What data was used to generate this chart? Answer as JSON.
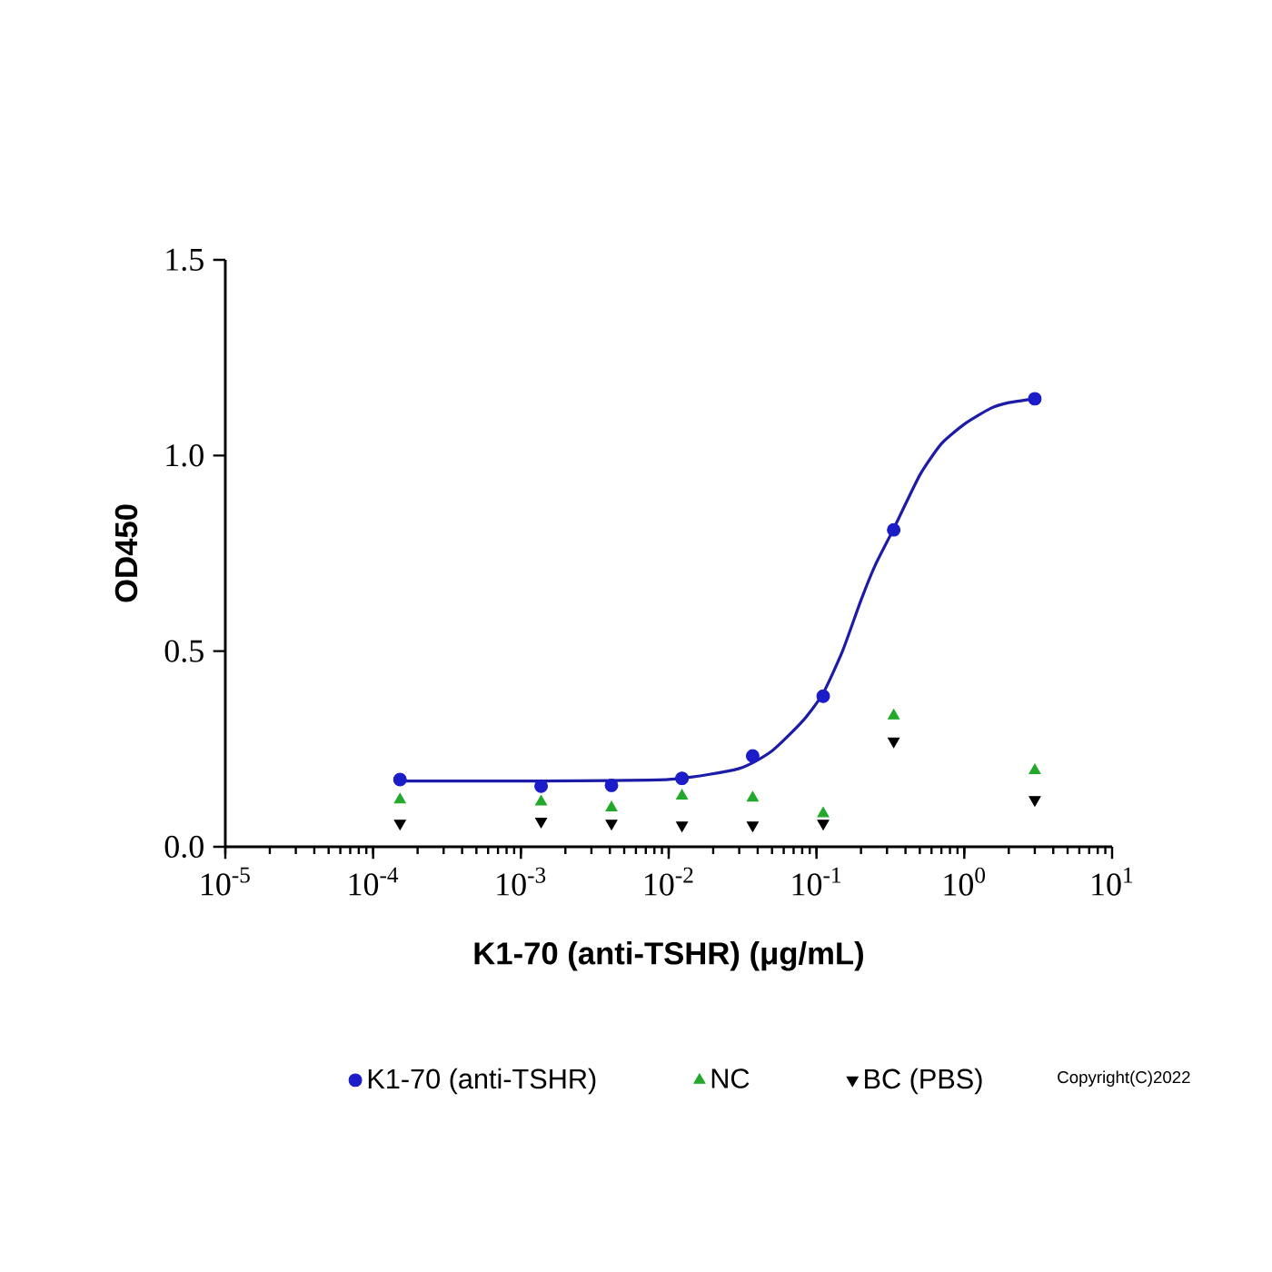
{
  "chart_data": {
    "type": "scatter",
    "xlabel": "K1-70 (anti-TSHR) (μg/mL)",
    "ylabel": "OD450",
    "log": "x",
    "xlim": [
      1e-05,
      10
    ],
    "ylim": [
      0,
      1.5
    ],
    "xticks": [
      {
        "value": 1e-05,
        "label": "10$^{-5}$"
      },
      {
        "value": 0.0001,
        "label": "10$^{-4}$"
      },
      {
        "value": 0.001,
        "label": "10$^{-3}$"
      },
      {
        "value": 0.01,
        "label": "10$^{-2}$"
      },
      {
        "value": 0.1,
        "label": "10$^{-1}$"
      },
      {
        "value": 1,
        "label": "10$^{0}$"
      },
      {
        "value": 10,
        "label": "10$^{1}$"
      }
    ],
    "yticks": [
      {
        "value": 0,
        "label": "0.0"
      },
      0.5,
      {
        "value": 1,
        "label": "1.0"
      },
      1.5
    ],
    "x": [
      0.000152,
      0.00137,
      0.0041,
      0.0123,
      0.037,
      0.111,
      0.333,
      3
    ],
    "grid": false,
    "legend": "bottom",
    "series": [
      {
        "type": "line",
        "color": "#1c1ca8",
        "marker": "none",
        "x": [
          0.00015,
          0.001,
          0.01,
          0.03,
          0.05,
          0.08,
          0.11,
          0.15,
          0.2,
          0.25,
          0.33,
          0.5,
          0.7,
          1,
          1.5,
          2,
          3
        ],
        "values": [
          0.168,
          0.168,
          0.172,
          0.2,
          0.245,
          0.32,
          0.39,
          0.5,
          0.63,
          0.72,
          0.81,
          0.95,
          1.03,
          1.08,
          1.12,
          1.135,
          1.145
        ]
      },
      {
        "name": "K1-70 (anti-TSHR)",
        "color": "#1c1cc8",
        "marker": "circle",
        "values": [
          0.172,
          0.155,
          0.157,
          0.175,
          0.232,
          0.385,
          0.81,
          1.145
        ]
      },
      {
        "name": "NC",
        "color": "#22a82a",
        "marker": "triangle",
        "values": [
          0.12,
          0.115,
          0.1,
          0.13,
          0.125,
          0.085,
          0.335,
          0.195
        ]
      },
      {
        "name": "BC (PBS)",
        "color": "#000000",
        "marker": "triangle_down",
        "values": [
          0.06,
          0.065,
          0.06,
          0.055,
          0.055,
          0.06,
          0.27,
          0.12
        ]
      }
    ],
    "annotations": [
      "Copyright(C)2022"
    ]
  }
}
